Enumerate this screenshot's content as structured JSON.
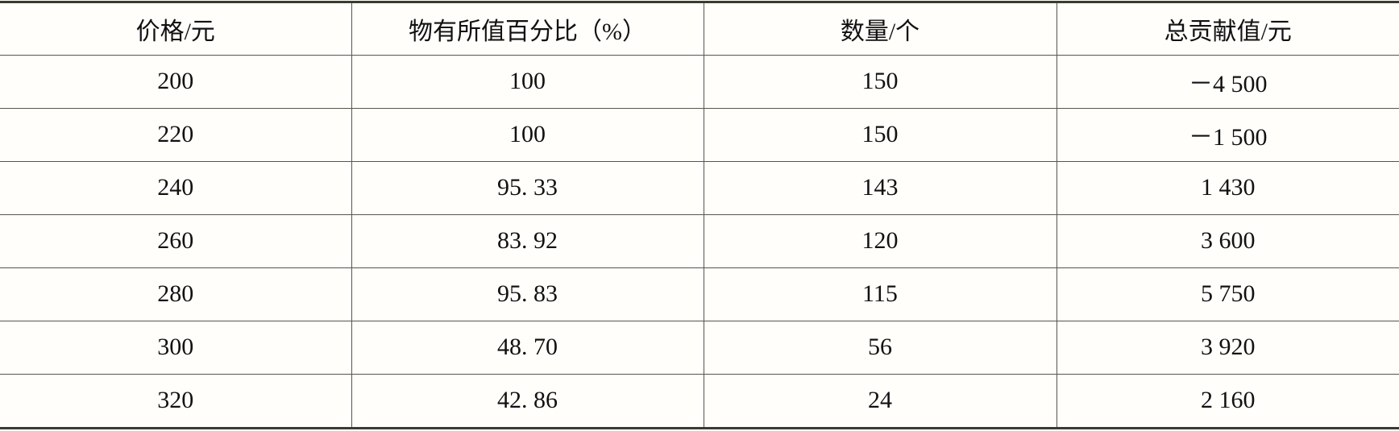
{
  "table": {
    "headers": [
      "价格/元",
      "物有所值百分比（%）",
      "数量/个",
      "总贡献值/元"
    ],
    "rows": [
      [
        "200",
        "100",
        "150",
        "－4 500"
      ],
      [
        "220",
        "100",
        "150",
        "－1 500"
      ],
      [
        "240",
        "95. 33",
        "143",
        "1 430"
      ],
      [
        "260",
        "83. 92",
        "120",
        "3 600"
      ],
      [
        "280",
        "95. 83",
        "115",
        "5 750"
      ],
      [
        "300",
        "48. 70",
        "56",
        "3 920"
      ],
      [
        "320",
        "42. 86",
        "24",
        "2 160"
      ]
    ]
  }
}
